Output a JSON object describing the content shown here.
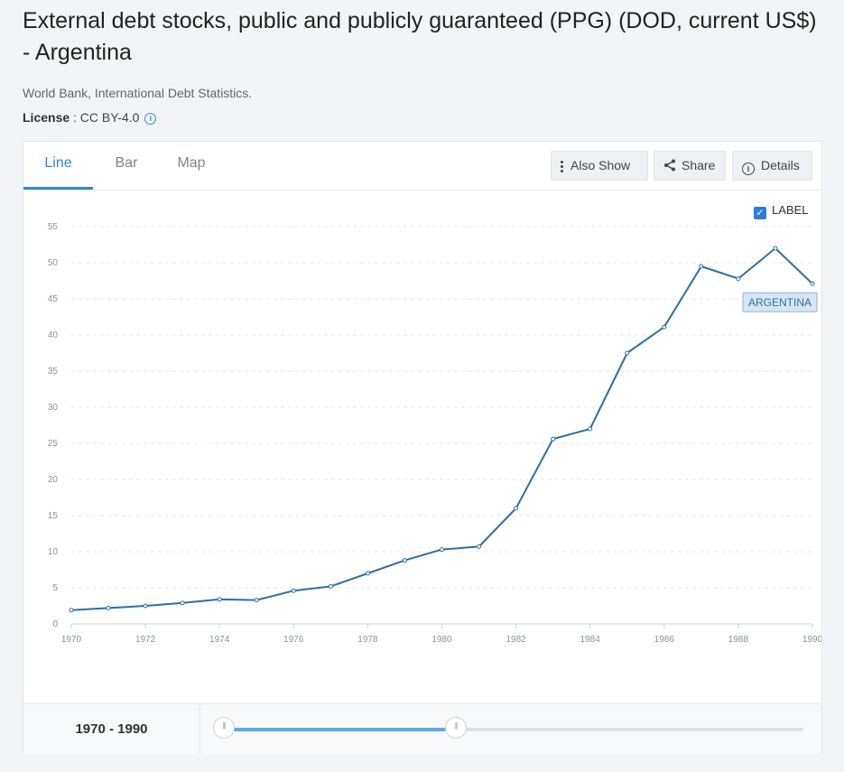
{
  "header": {
    "title": "External debt stocks, public and publicly guaranteed (PPG) (DOD, current US$) - Argentina",
    "source": "World Bank, International Debt Statistics.",
    "license_label": "License",
    "license_value": " : CC BY-4.0"
  },
  "tabs": [
    {
      "label": "Line",
      "active": true
    },
    {
      "label": "Bar",
      "active": false
    },
    {
      "label": "Map",
      "active": false
    }
  ],
  "toolbar": {
    "also_show": "Also Show",
    "share": "Share",
    "details": "Details"
  },
  "label_toggle": {
    "label": "LABEL",
    "checked": true
  },
  "colors": {
    "accent": "#2f88d2",
    "line": "#2e6fa3",
    "badge_bg": "#d6e6f4"
  },
  "chart_data": {
    "type": "line",
    "x": [
      1970,
      1971,
      1972,
      1973,
      1974,
      1975,
      1976,
      1977,
      1978,
      1979,
      1980,
      1981,
      1982,
      1983,
      1984,
      1985,
      1986,
      1987,
      1988,
      1989,
      1990
    ],
    "series": [
      {
        "name": "ARGENTINA",
        "values": [
          1.9,
          2.2,
          2.5,
          2.9,
          3.4,
          3.3,
          4.6,
          5.2,
          7.0,
          8.8,
          10.3,
          10.7,
          16.0,
          25.6,
          27.0,
          37.5,
          41.1,
          49.5,
          47.8,
          52.0,
          47.1
        ]
      }
    ],
    "xticks": [
      1970,
      1972,
      1974,
      1976,
      1978,
      1980,
      1982,
      1984,
      1986,
      1988,
      1990
    ],
    "yticks": [
      0,
      5,
      10,
      15,
      20,
      25,
      30,
      35,
      40,
      45,
      50,
      55
    ],
    "xlim": [
      1970,
      1990
    ],
    "ylim": [
      0,
      55
    ],
    "grid": true
  },
  "range": {
    "label": "1970 - 1990",
    "min": 1970,
    "max": 2020,
    "start": 1970,
    "end": 1990
  }
}
